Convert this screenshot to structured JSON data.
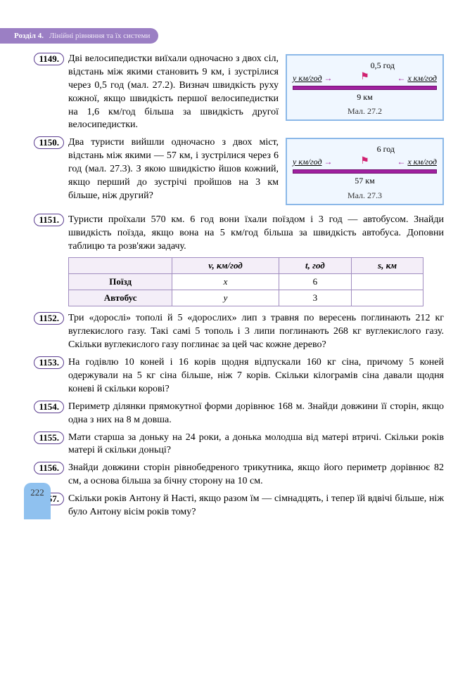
{
  "header": {
    "section": "Розділ 4.",
    "title": "Лінійні рівняння та їх системи"
  },
  "problems": {
    "p1149": {
      "num": "1149.",
      "text_a": "Дві велосипедистки виїхали одночасно з двох сіл, відстань між якими становить 9 км, і зустрілися через 0,5 год (мал. 27.2). Визнач швидкість руху кожної, якщо швидкість першої велосипедистки на 1,6 км/год більша за швидкість другої велосипедистки."
    },
    "p1150": {
      "num": "1150.",
      "text": "Два туристи вийшли одночасно з двох міст, відстань між якими — 57 км, і зустрілися через 6 год (мал. 27.3). З якою швидкістю йшов кожний, якщо перший до зустрічі пройшов на 3 км більше, ніж другий?"
    },
    "p1151": {
      "num": "1151.",
      "text": "Туристи проїхали 570 км. 6 год вони їхали поїздом і 3 год — автобусом. Знайди швидкість поїзда, якщо вона на 5 км/год більша за швидкість автобуса. Доповни таблицю та розв'яжи задачу."
    },
    "p1152": {
      "num": "1152.",
      "text": "Три «дорослі» тополі й 5 «дорослих» лип з травня по вересень поглинають 212 кг вуглекислого газу. Такі самі 5 тополь і 3 липи поглинають 268 кг вуглекислого газу. Скільки вуглекислого газу поглинає за цей час кожне дерево?"
    },
    "p1153": {
      "num": "1153.",
      "text": "На годівлю 10 коней і 16 корів щодня відпускали 160 кг сіна, причому 5 коней одержували на 5 кг сіна більше, ніж 7 корів. Скільки кілограмів сіна давали щодня коневі й скільки корові?"
    },
    "p1154": {
      "num": "1154.",
      "text": "Периметр ділянки прямокутної форми дорівнює 168 м. Знайди довжини її сторін, якщо одна з них на 8 м довша."
    },
    "p1155": {
      "num": "1155.",
      "text": "Мати старша за доньку на 24 роки, а донька молодша від матері втричі. Скільки років матері й скільки доньці?"
    },
    "p1156": {
      "num": "1156.",
      "text": "Знайди довжини сторін рівнобедреного трикутника, якщо його периметр дорівнює 82 см, а основа більша за бічну сторону на 10 см."
    },
    "p1157": {
      "num": "1157.",
      "text": "Скільки років Антону й Насті, якщо разом їм — сімнадцять, і тепер їй вдвічі більше, ніж було Антону вісім років тому?"
    }
  },
  "diagram1": {
    "top": "0,5 год",
    "left_label": "y км/год",
    "right_label": "x км/год",
    "bottom": "9 км",
    "caption": "Мал. 27.2",
    "border_color": "#8bb8e8",
    "bg_color": "#f0f7ff",
    "line_color": "#a020a0"
  },
  "diagram2": {
    "top": "6 год",
    "left_label": "y км/год",
    "right_label": "x км/год",
    "bottom": "57 км",
    "caption": "Мал. 27.3"
  },
  "table": {
    "headers": [
      "",
      "v, км/год",
      "t, год",
      "s, км"
    ],
    "rows": [
      [
        "Поїзд",
        "x",
        "6",
        ""
      ],
      [
        "Автобус",
        "y",
        "3",
        ""
      ]
    ],
    "header_bg": "#f4eef8",
    "border_color": "#a08cc0"
  },
  "page_number": "222",
  "colors": {
    "header_band": "#9b7fc4",
    "num_border": "#5a3c8f",
    "pagenum_bg": "#8fc1ef"
  }
}
